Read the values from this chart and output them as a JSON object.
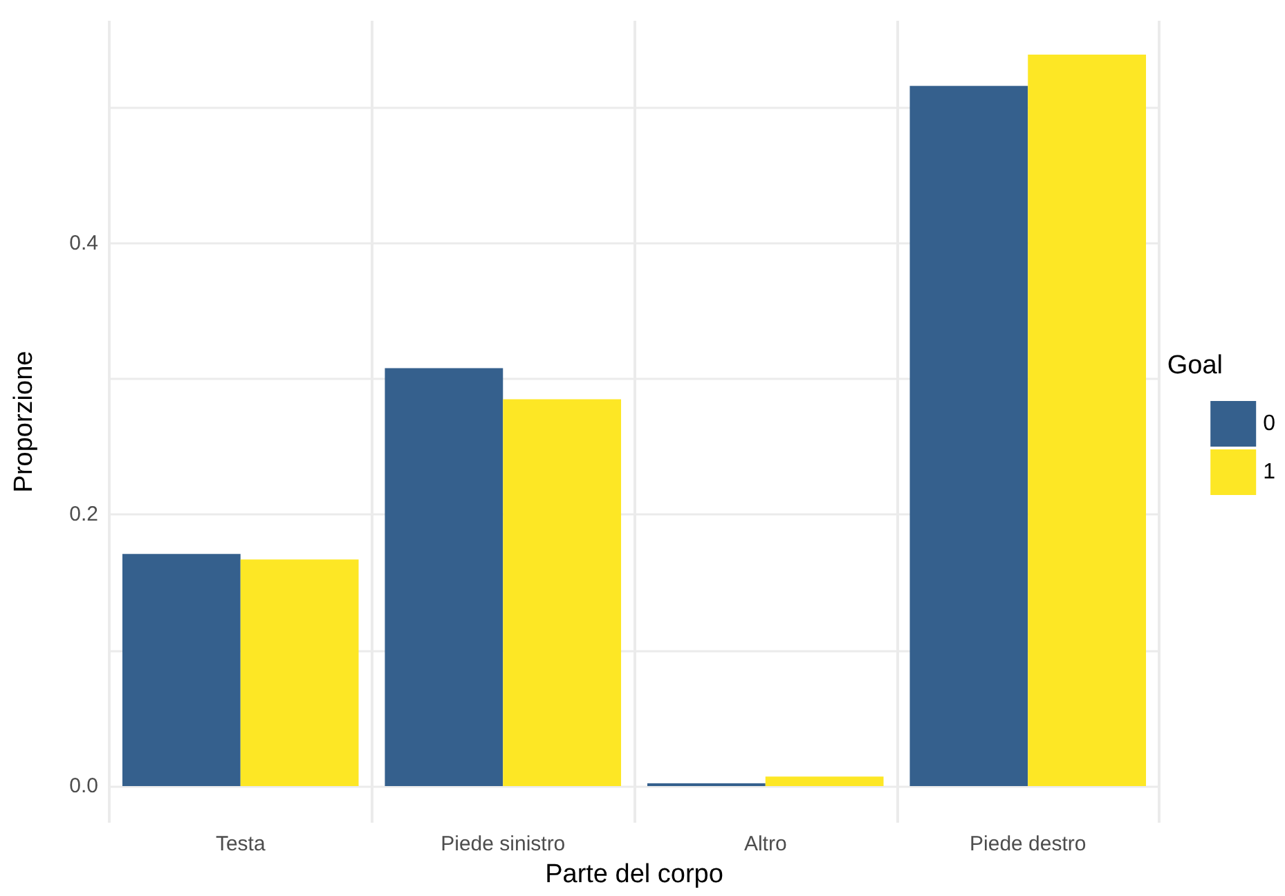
{
  "chart_data": {
    "type": "bar",
    "xlabel": "Parte del corpo",
    "ylabel": "Proporzione",
    "legend_title": "Goal",
    "categories": [
      "Testa",
      "Piede sinistro",
      "Altro",
      "Piede destro"
    ],
    "series": [
      {
        "name": "0",
        "color": "#35608d",
        "values": [
          0.171,
          0.308,
          0.002,
          0.516
        ]
      },
      {
        "name": "1",
        "color": "#fde725",
        "values": [
          0.167,
          0.285,
          0.007,
          0.539
        ]
      }
    ],
    "ylim": [
      -0.027,
      0.564
    ],
    "yticks": [
      {
        "value": 0,
        "label": "0.0"
      },
      {
        "value": 0.1,
        "label": null
      },
      0.2,
      {
        "value": 0.3,
        "label": null
      },
      0.4,
      {
        "value": 0.5,
        "label": null
      }
    ],
    "grid": true,
    "legend": "right"
  }
}
